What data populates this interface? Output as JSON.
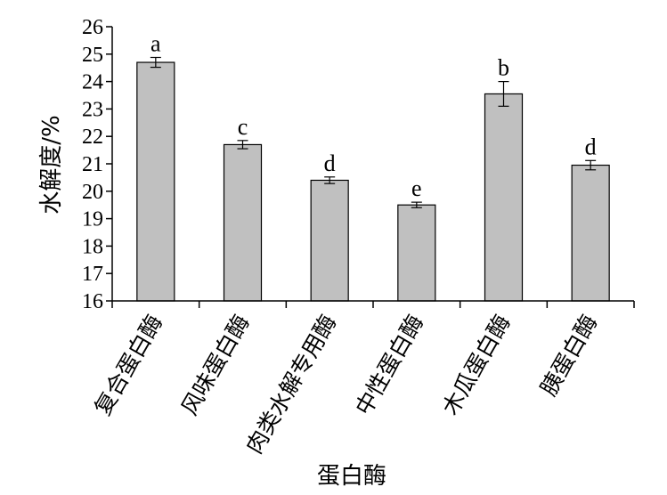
{
  "chart_data": {
    "type": "bar",
    "title": "",
    "xlabel": "蛋白酶",
    "ylabel": "水解度/%",
    "ylim": [
      16,
      26
    ],
    "yticks": [
      16,
      17,
      18,
      19,
      20,
      21,
      22,
      23,
      24,
      25,
      26
    ],
    "grid": false,
    "legend": "none",
    "bar_color": "#c0c0c0",
    "categories": [
      "复合蛋白酶",
      "风味蛋白酶",
      "肉类水解专用酶",
      "中性蛋白酶",
      "木瓜蛋白酶",
      "胰蛋白酶"
    ],
    "values": [
      24.7,
      21.7,
      20.4,
      19.5,
      23.55,
      20.95
    ],
    "errors": [
      0.18,
      0.15,
      0.12,
      0.1,
      0.45,
      0.17
    ],
    "significance": [
      "a",
      "c",
      "d",
      "e",
      "b",
      "d"
    ]
  }
}
